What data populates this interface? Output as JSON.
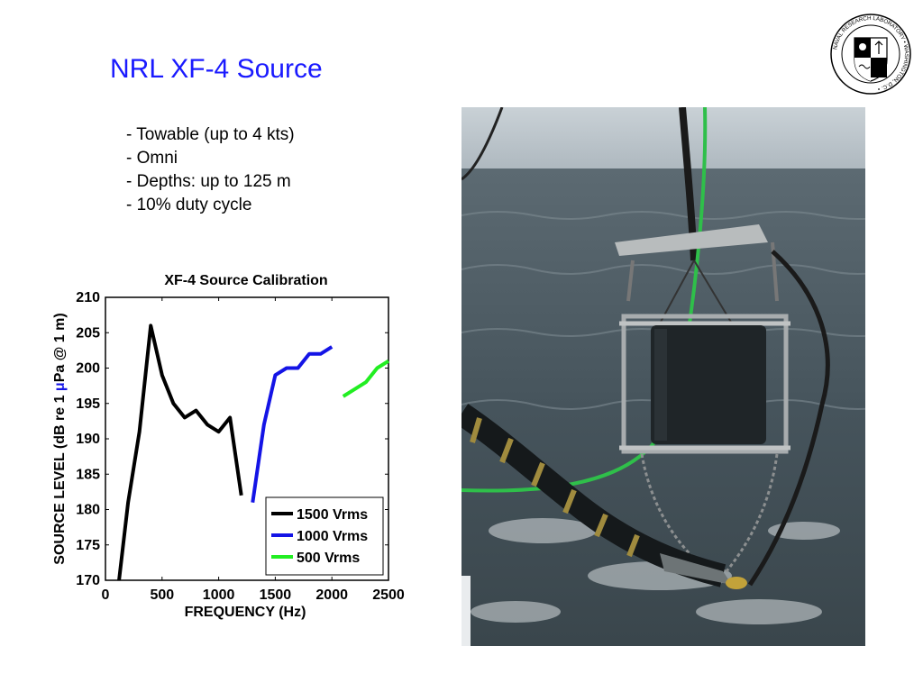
{
  "slide": {
    "title": "NRL XF-4 Source",
    "bullets": [
      "- Towable (up to 4 kts)",
      "- Omni",
      "- Depths: up to 125 m",
      "- 10% duty cycle"
    ]
  },
  "logo": {
    "ring_text": "NAVAL RESEARCH LABORATORY • WASHINGTON, D.C. •",
    "icon": "nrl-seal-icon"
  },
  "photo": {
    "description_icon": "towed-sound-source-photo"
  },
  "colors": {
    "title": "#1a1aff",
    "series_1500": "#000000",
    "series_1000": "#1414e6",
    "series_500": "#22ee22"
  },
  "chart_data": {
    "type": "line",
    "title": "XF-4 Source Calibration",
    "xlabel": "FREQUENCY (Hz)",
    "ylabel": "SOURCE LEVEL (dB re 1 μPa @ 1 m)",
    "xlim": [
      0,
      2500
    ],
    "ylim": [
      170,
      210
    ],
    "xticks": [
      0,
      500,
      1000,
      1500,
      2000,
      2500
    ],
    "yticks": [
      170,
      175,
      180,
      185,
      190,
      195,
      200,
      205,
      210
    ],
    "grid": false,
    "legend_position": "bottom-right",
    "series": [
      {
        "name": "1500 Vrms",
        "color": "#000000",
        "x": [
          120,
          200,
          300,
          400,
          500,
          600,
          700,
          800,
          900,
          1000,
          1100,
          1200
        ],
        "y": [
          170,
          181,
          191,
          206,
          199,
          195,
          193,
          194,
          192,
          191,
          193,
          182
        ]
      },
      {
        "name": "1000 Vrms",
        "color": "#1414e6",
        "x": [
          1300,
          1400,
          1500,
          1600,
          1700,
          1800,
          1900,
          2000
        ],
        "y": [
          181,
          192,
          199,
          200,
          200,
          202,
          202,
          203
        ]
      },
      {
        "name": "500 Vrms",
        "color": "#22ee22",
        "x": [
          2100,
          2200,
          2300,
          2400,
          2500
        ],
        "y": [
          196,
          197,
          198,
          200,
          201
        ]
      }
    ]
  }
}
